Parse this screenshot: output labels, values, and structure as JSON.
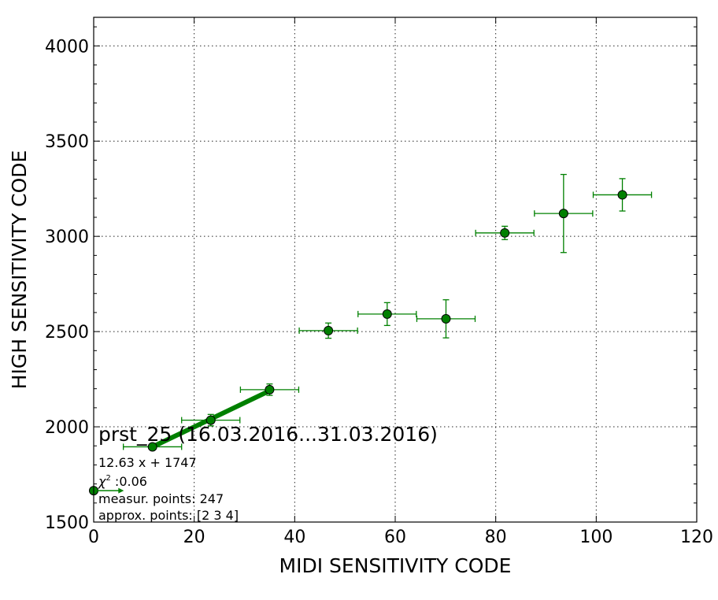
{
  "chart_data": {
    "type": "scatter",
    "xlabel": "MIDI SENSITIVITY CODE",
    "ylabel": "HIGH SENSITIVITY CODE",
    "xlim": [
      0,
      120
    ],
    "ylim": [
      1500,
      4150
    ],
    "xticks": [
      0,
      20,
      40,
      60,
      80,
      100,
      120
    ],
    "yticks": [
      1500,
      2000,
      2500,
      3000,
      3500,
      4000
    ],
    "grid": true,
    "color": "#008000",
    "series": [
      {
        "points": [
          {
            "x": 0.0,
            "y": 1665,
            "xerr": 0,
            "yerr": 0
          },
          {
            "x": 11.7,
            "y": 1895,
            "xerr": 5.8,
            "yerr": 0
          },
          {
            "x": 23.3,
            "y": 2035,
            "xerr": 5.8,
            "yerr": 30
          },
          {
            "x": 35.0,
            "y": 2195,
            "xerr": 5.8,
            "yerr": 30
          },
          {
            "x": 46.7,
            "y": 2505,
            "xerr": 5.8,
            "yerr": 40
          },
          {
            "x": 58.4,
            "y": 2592,
            "xerr": 5.8,
            "yerr": 60
          },
          {
            "x": 70.1,
            "y": 2567,
            "xerr": 5.8,
            "yerr": 100
          },
          {
            "x": 81.8,
            "y": 3018,
            "xerr": 5.8,
            "yerr": 35
          },
          {
            "x": 93.5,
            "y": 3120,
            "xerr": 5.8,
            "yerr": 205
          },
          {
            "x": 105.2,
            "y": 3218,
            "xerr": 5.8,
            "yerr": 85
          }
        ]
      }
    ],
    "fit": {
      "slope": 12.63,
      "intercept": 1747,
      "x_range": [
        11.7,
        35.0
      ]
    },
    "arrow": {
      "x_start": 0,
      "x_end": 6,
      "y": 1665
    },
    "annotations": {
      "title": "prst_25 (16.03.2016...31.03.2016)",
      "equation": "12.63 x + 1747",
      "chi2_symbol": "χ",
      "chi2_sup": "2",
      "chi2_value": " :0.06",
      "measur_points": "measur. points: 247",
      "approx_points": "approx. points: [2 3 4]"
    }
  }
}
